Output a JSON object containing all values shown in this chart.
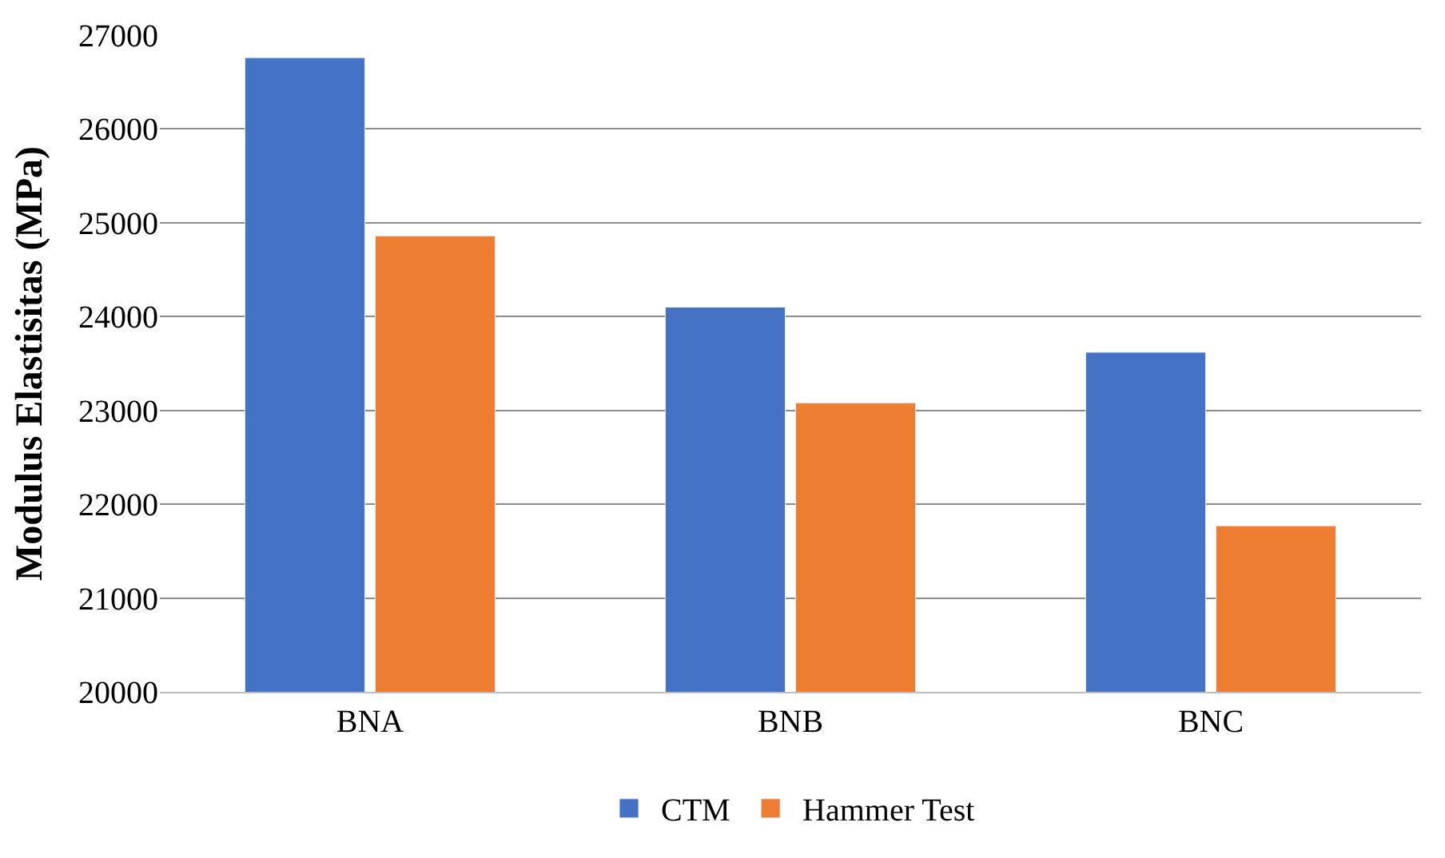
{
  "chart_data": {
    "type": "bar",
    "ylabel": "Modulus Elastisitas (MPa)",
    "categories": [
      "BNA",
      "BNB",
      "BNC"
    ],
    "series": [
      {
        "name": "CTM",
        "color": "#4472c4",
        "values": [
          26760,
          24100,
          23620
        ]
      },
      {
        "name": "Hammer Test",
        "color": "#ed7d31",
        "values": [
          24860,
          23080,
          21770
        ]
      }
    ],
    "ylim": [
      20000,
      27000
    ],
    "yticks": [
      20000,
      21000,
      22000,
      23000,
      24000,
      25000,
      26000,
      27000
    ],
    "grid": "y",
    "legend": "bottom"
  }
}
